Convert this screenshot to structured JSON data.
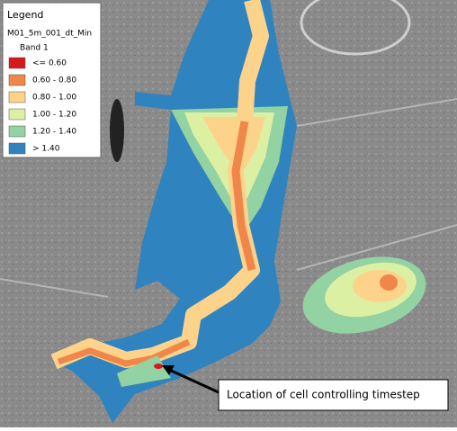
{
  "legend": {
    "title": "Legend",
    "layer": "M01_5m_001_dt_Min",
    "band": "Band 1",
    "items": [
      {
        "label": "<= 0.60",
        "color": "#d7191c"
      },
      {
        "label": "0.60 - 0.80",
        "color": "#f0874a"
      },
      {
        "label": "0.80 - 1.00",
        "color": "#fdd38c"
      },
      {
        "label": "1.00 - 1.20",
        "color": "#dcf0a4"
      },
      {
        "label": "1.20 - 1.40",
        "color": "#93d2a3"
      },
      {
        "label": "> 1.40",
        "color": "#2f84c0"
      }
    ]
  },
  "annotation": {
    "text": "Location of cell controlling timestep"
  }
}
